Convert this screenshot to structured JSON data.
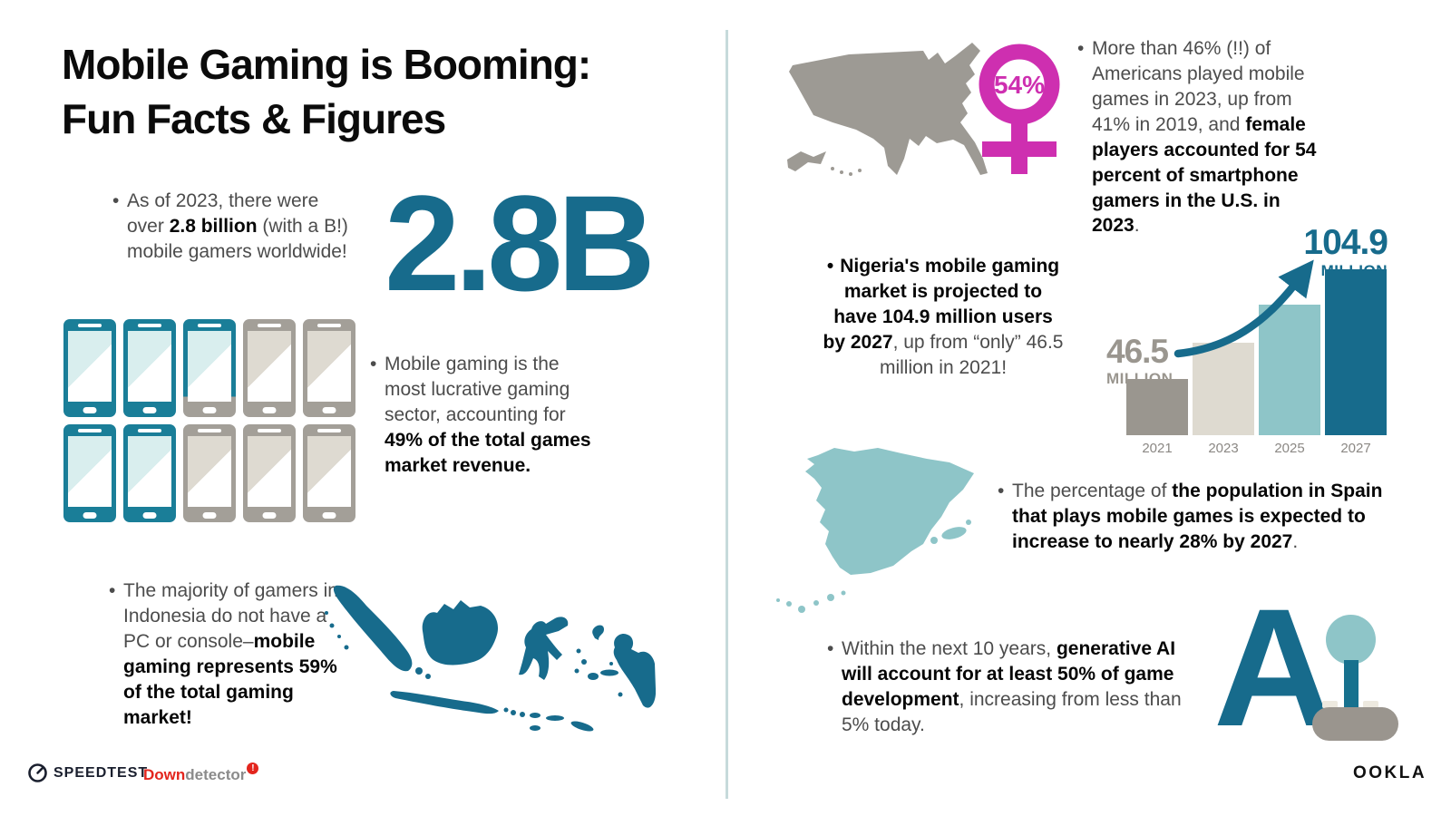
{
  "bullet": "•",
  "page": {
    "title_line1": "Mobile Gaming is Booming:",
    "title_line2": "Fun Facts & Figures"
  },
  "facts": {
    "big_stat": "2.8B",
    "gamers": {
      "pre": "As of 2023, there were over ",
      "bold": "2.8 billion",
      "post": " (with a B!) mobile gamers worldwide!"
    },
    "revenue": {
      "pre": "Mobile gaming is the most lucrative gaming sector, accounting for ",
      "bold": "49% of the total games market revenue."
    },
    "indonesia": {
      "pre": "The majority of gamers in Indonesia do not have a PC or console–",
      "bold": "mobile gaming represents 59% of the total gaming market!"
    },
    "usa": {
      "pre": "More than 46% (!!) of Americans played mobile games in 2023, up from 41% in 2019, and ",
      "bold": "female players accounted for 54 percent of smartphone gamers in the U.S. in 2023",
      "post": "."
    },
    "nigeria": {
      "bold": "Nigeria's mobile gaming market is projected to have 104.9 million users by 2027",
      "post": ", up from “only” 46.5 million in 2021!"
    },
    "spain": {
      "pre": "The percentage of ",
      "bold": "the population in Spain that plays mobile games is expected to increase to nearly 28% by 2027",
      "post": "."
    },
    "ai": {
      "pre": "Within the next 10 years, ",
      "bold": "generative AI will account for at least 50% of game development",
      "post": ", increasing from less than 5% today."
    }
  },
  "female_stat": {
    "value": "54%"
  },
  "phone_grid": {
    "filled_phones": 4.9,
    "total_phones": 10,
    "states": [
      "full",
      "full",
      "partial",
      "empty",
      "empty",
      "full",
      "full",
      "empty",
      "empty",
      "empty"
    ]
  },
  "chart_data": {
    "type": "bar",
    "categories": [
      "2021",
      "2023",
      "2025",
      "2027"
    ],
    "values": [
      46.5,
      66,
      86,
      104.9
    ],
    "unit": "million users",
    "labels": {
      "start_value": "46.5",
      "start_unit": "MILLION",
      "end_value": "104.9",
      "end_unit": "MILLION"
    },
    "colors": [
      "#9A968F",
      "#DEDAD0",
      "#8EC5C8",
      "#176B8C"
    ],
    "ylim": [
      0,
      110
    ],
    "grid": false,
    "legend": false
  },
  "ai_art": {
    "letter": "A"
  },
  "footer": {
    "speedtest": "SPEEDTEST",
    "downdetector_red": "Down",
    "downdetector_gray": "detector",
    "downdetector_badge": "!",
    "ookla": "OOKLA"
  },
  "colors": {
    "teal_dark": "#176B8C",
    "teal_phone": "#1A7E98",
    "teal_light": "#8EC5C8",
    "beige": "#DEDAD0",
    "gray": "#9A968F",
    "magenta": "#CE2FB0",
    "red": "#E3251D",
    "navy": "#1A1F2E"
  }
}
